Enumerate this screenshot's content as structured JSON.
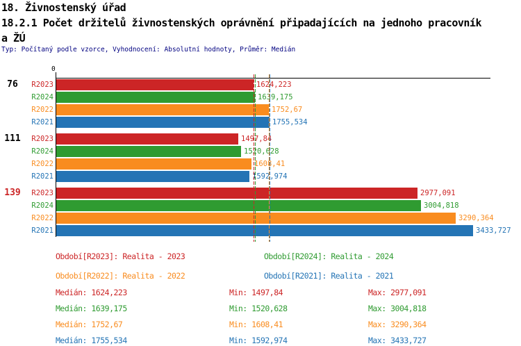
{
  "header": {
    "title_line1": "18. Živnostenský úřad",
    "title_line2": "18.2.1 Počet držitelů živnostenských oprávnění připadajících na jednoho pracovník",
    "title_line3": "a ŽÚ",
    "meta": "Typ: Počítaný podle vzorce, Vyhodnocení: Absolutní hodnoty, Průměr: Medián"
  },
  "chart_data": {
    "type": "bar",
    "orientation": "horizontal",
    "title": "18.2.1 Počet držitelů živnostenských oprávnění připadajících na jednoho pracovníka ŽÚ",
    "axis_origin_label": "0",
    "xlim": [
      0,
      3576
    ],
    "grid": false,
    "series": [
      {
        "id": "R2023",
        "name": "Realita - 2023",
        "color": "#cc2526"
      },
      {
        "id": "R2024",
        "name": "Realita - 2024",
        "color": "#2f9b31"
      },
      {
        "id": "R2022",
        "name": "Realita - 2022",
        "color": "#f98c1f"
      },
      {
        "id": "R2021",
        "name": "Realita - 2021",
        "color": "#2474b5"
      }
    ],
    "groups": [
      {
        "label": "76",
        "label_color": "#000000",
        "bars": [
          {
            "series": "R2023",
            "value": 1624.223,
            "display": "1624,223"
          },
          {
            "series": "R2024",
            "value": 1639.175,
            "display": "1639,175"
          },
          {
            "series": "R2022",
            "value": 1752.67,
            "display": "1752,67"
          },
          {
            "series": "R2021",
            "value": 1755.534,
            "display": "1755,534"
          }
        ]
      },
      {
        "label": "111",
        "label_color": "#000000",
        "bars": [
          {
            "series": "R2023",
            "value": 1497.84,
            "display": "1497,84"
          },
          {
            "series": "R2024",
            "value": 1520.628,
            "display": "1520,628"
          },
          {
            "series": "R2022",
            "value": 1608.41,
            "display": "1608,41"
          },
          {
            "series": "R2021",
            "value": 1592.974,
            "display": "1592,974"
          }
        ]
      },
      {
        "label": "139",
        "label_color": "#cc2526",
        "bars": [
          {
            "series": "R2023",
            "value": 2977.091,
            "display": "2977,091"
          },
          {
            "series": "R2024",
            "value": 3004.818,
            "display": "3004,818"
          },
          {
            "series": "R2022",
            "value": 3290.364,
            "display": "3290,364"
          },
          {
            "series": "R2021",
            "value": 3433.727,
            "display": "3433,727"
          }
        ]
      }
    ],
    "medians": {
      "R2023": 1624.223,
      "R2024": 1639.175,
      "R2022": 1752.67,
      "R2021": 1755.534
    }
  },
  "legend": {
    "items": [
      {
        "series": "R2023",
        "text": "Období[R2023]: Realita - 2023"
      },
      {
        "series": "R2024",
        "text": "Období[R2024]: Realita - 2024"
      },
      {
        "series": "R2022",
        "text": "Období[R2022]: Realita - 2022"
      },
      {
        "series": "R2021",
        "text": "Období[R2021]: Realita - 2021"
      }
    ]
  },
  "stats": {
    "rows": [
      {
        "series": "R2023",
        "median": "Medián: 1624,223",
        "min": "Min: 1497,84",
        "max": "Max: 2977,091"
      },
      {
        "series": "R2024",
        "median": "Medián: 1639,175",
        "min": "Min: 1520,628",
        "max": "Max: 3004,818"
      },
      {
        "series": "R2022",
        "median": "Medián: 1752,67",
        "min": "Min: 1608,41",
        "max": "Max: 3290,364"
      },
      {
        "series": "R2021",
        "median": "Medián: 1755,534",
        "min": "Min: 1592,974",
        "max": "Max: 3433,727"
      }
    ]
  }
}
